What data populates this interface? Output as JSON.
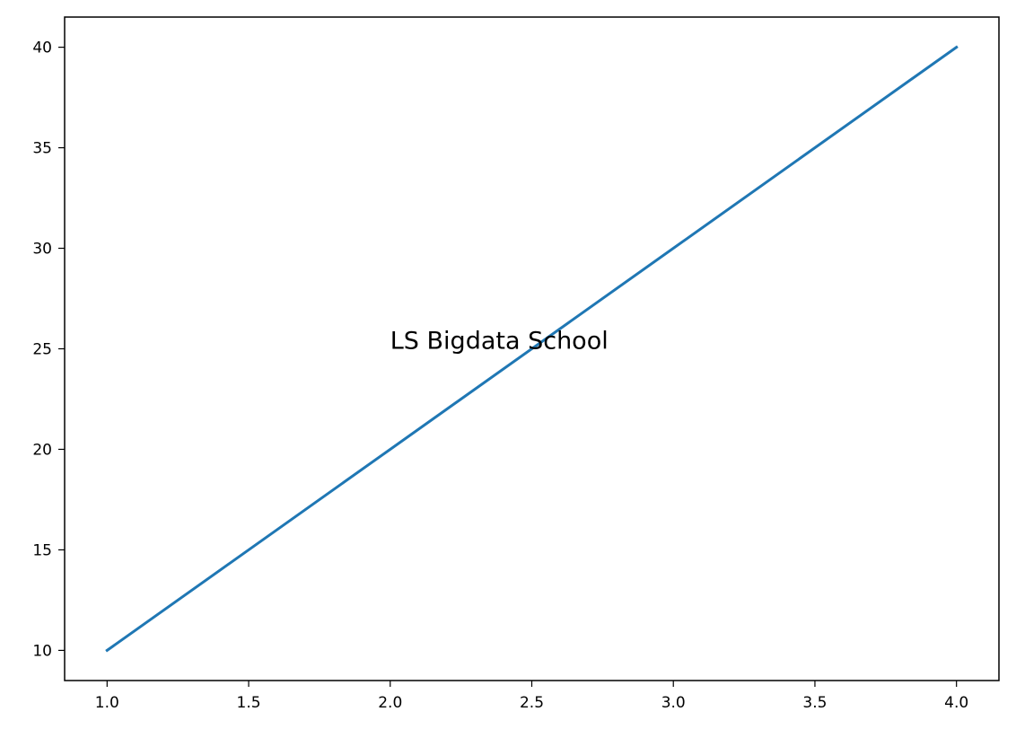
{
  "chart_data": {
    "type": "line",
    "title": "",
    "xlabel": "",
    "ylabel": "",
    "xlim": [
      0.85,
      4.15
    ],
    "ylim": [
      8.5,
      41.5
    ],
    "grid": false,
    "xticks": [
      1.0,
      1.5,
      2.0,
      2.5,
      3.0,
      3.5,
      4.0
    ],
    "xtick_labels": [
      "1.0",
      "1.5",
      "2.0",
      "2.5",
      "3.0",
      "3.5",
      "4.0"
    ],
    "yticks": [
      10,
      15,
      20,
      25,
      30,
      35,
      40
    ],
    "ytick_labels": [
      "10",
      "15",
      "20",
      "25",
      "30",
      "35",
      "40"
    ],
    "series": [
      {
        "x": [
          1,
          2,
          3,
          4
        ],
        "values": [
          10,
          20,
          30,
          40
        ],
        "color": "#1f77b4"
      }
    ],
    "annotations": [
      {
        "text": "LS Bigdata School",
        "x": 2,
        "y": 25
      }
    ]
  }
}
